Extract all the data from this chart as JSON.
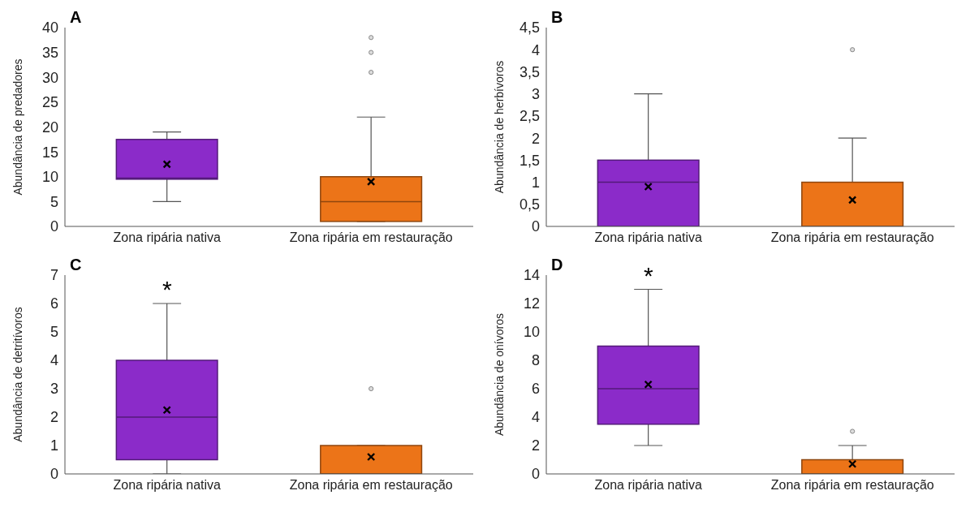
{
  "chart_data": [
    {
      "type": "box",
      "title": "A",
      "ylabel": "Abundância de predadores",
      "categories": [
        "Zona ripária nativa",
        "Zona ripária em restauração"
      ],
      "colors": [
        "#8b2bc9",
        "#ec7418"
      ],
      "boxes": [
        {
          "low": 5,
          "q1": 9.5,
          "median": 9.7,
          "q3": 17.5,
          "high": 19,
          "mean": 12.5
        },
        {
          "low": 1,
          "q1": 1,
          "median": 5,
          "q3": 10,
          "high": 22,
          "mean": 9,
          "outliers": [
            31,
            35,
            38
          ]
        }
      ],
      "ylim": [
        0,
        40
      ],
      "yticks": [
        0,
        5,
        10,
        15,
        20,
        25,
        30,
        35,
        40
      ],
      "grid": false,
      "legend": false
    },
    {
      "type": "box",
      "title": "B",
      "ylabel": "Abundância de herbívoros",
      "categories": [
        "Zona ripária nativa",
        "Zona ripária em restauração"
      ],
      "colors": [
        "#8b2bc9",
        "#ec7418"
      ],
      "boxes": [
        {
          "low": 0,
          "q1": 0,
          "median": 1,
          "q3": 1.5,
          "high": 3,
          "mean": 0.9
        },
        {
          "low": 0,
          "q1": 0,
          "median": 0,
          "q3": 1,
          "high": 2,
          "mean": 0.6,
          "outliers": [
            4
          ]
        }
      ],
      "ylim": [
        0,
        4.5
      ],
      "yticks": [
        0,
        {
          "value": 0.5,
          "label": "0,5"
        },
        1,
        {
          "value": 1.5,
          "label": "1,5"
        },
        2,
        {
          "value": 2.5,
          "label": "2,5"
        },
        3,
        {
          "value": 3.5,
          "label": "3,5"
        },
        4,
        {
          "value": 4.5,
          "label": "4,5"
        }
      ],
      "grid": false,
      "legend": false
    },
    {
      "type": "box",
      "title": "C",
      "ylabel": "Abundância de detritívoros",
      "categories": [
        "Zona ripária nativa",
        "Zona ripária em restauração"
      ],
      "colors": [
        "#8b2bc9",
        "#ec7418"
      ],
      "boxes": [
        {
          "low": 0,
          "q1": 0.5,
          "median": 2,
          "q3": 4,
          "high": 6,
          "mean": 2.25
        },
        {
          "low": 0,
          "q1": 0,
          "median": 0,
          "q3": 1,
          "high": 1,
          "mean": 0.6,
          "outliers": [
            3
          ]
        }
      ],
      "ylim": [
        0,
        7
      ],
      "yticks": [
        0,
        1,
        2,
        3,
        4,
        5,
        6,
        7
      ],
      "grid": false,
      "legend": false,
      "annotations": [
        "*"
      ]
    },
    {
      "type": "box",
      "title": "D",
      "ylabel": "Abundância de onívoros",
      "categories": [
        "Zona ripária nativa",
        "Zona ripária em restauração"
      ],
      "colors": [
        "#8b2bc9",
        "#ec7418"
      ],
      "boxes": [
        {
          "low": 2,
          "q1": 3.5,
          "median": 6,
          "q3": 9,
          "high": 13,
          "mean": 6.3
        },
        {
          "low": 0,
          "q1": 0,
          "median": 0,
          "q3": 1,
          "high": 2,
          "mean": 0.7,
          "outliers": [
            3
          ]
        }
      ],
      "ylim": [
        0,
        14
      ],
      "yticks": [
        0,
        2,
        4,
        6,
        8,
        10,
        12,
        14
      ],
      "grid": false,
      "legend": false,
      "annotations": [
        "*"
      ]
    }
  ]
}
